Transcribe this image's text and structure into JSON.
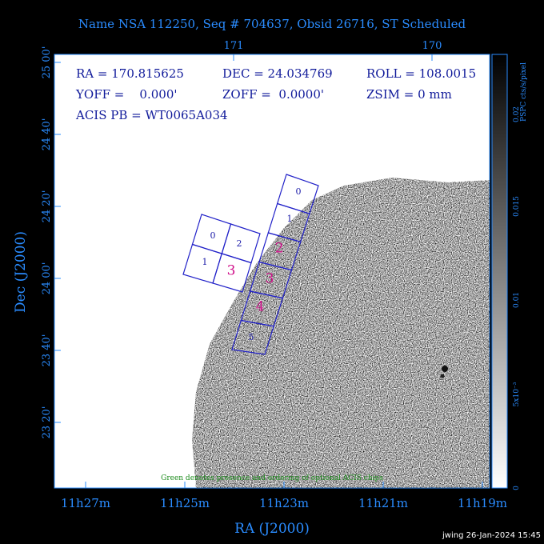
{
  "header": {
    "title": "Name NSA 112250, Seq # 704637, Obsid 26716, ST Scheduled"
  },
  "axes": {
    "top_ticks": [
      "171",
      "170"
    ],
    "left_ticks": [
      "25 00'",
      "24 40'",
      "24 20'",
      "24 00'",
      "23 40'",
      "23 20'"
    ],
    "bottom_ticks": [
      "11h27m",
      "11h25m",
      "11h23m",
      "11h21m",
      "11h19m"
    ],
    "x_label": "RA (J2000)",
    "y_label": "Dec (J2000)"
  },
  "colorbar": {
    "label": "PSPC cts/s/pixel",
    "ticks": [
      "0.02",
      "0.015",
      "0.01",
      "5x10⁻³",
      "0"
    ]
  },
  "info": {
    "ra": "RA = 170.815625",
    "dec": "DEC = 24.034769",
    "roll": "ROLL = 108.0015",
    "yoff": "YOFF =    0.000'",
    "zoff": "ZOFF =  0.0000'",
    "zsim": "ZSIM = 0 mm",
    "acis_pb": "ACIS PB = WT0065A034"
  },
  "chips": {
    "i_array": [
      "0",
      "2",
      "1"
    ],
    "s_array": [
      "0",
      "1",
      "5"
    ],
    "highlight": [
      "2",
      "3",
      "3",
      "4"
    ]
  },
  "note": "Green denotes presence and ordering of optional ACIS chips",
  "footer": "jwing 26-Jan-2024 15:45"
}
